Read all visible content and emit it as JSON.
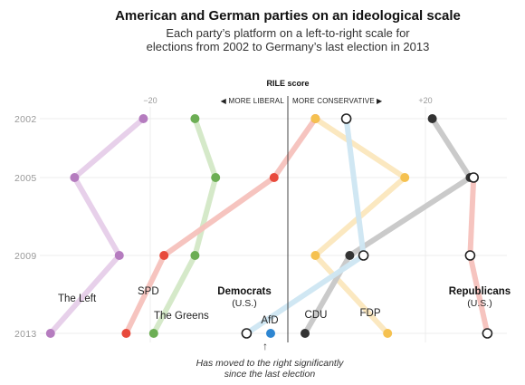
{
  "header": {
    "title": "American and German parties on an ideological scale",
    "subtitle_line1": "Each party’s platform on a left-to-right scale for",
    "subtitle_line2": "elections from 2002 to Germany’s last election in 2013"
  },
  "axis": {
    "title": "RILE score",
    "left_label": "MORE LIBERAL",
    "right_label": "MORE CONSERVATIVE",
    "left_arrow": "◀",
    "right_arrow": "▶"
  },
  "annotation": {
    "arrow": "↑",
    "line1": "Has moved to the right significantly",
    "line2": "since the last election"
  },
  "chart_data": {
    "type": "line",
    "title": "American and German parties on an ideological scale",
    "xlabel": "RILE score",
    "x_ticks": [
      -20,
      20
    ],
    "x_tick_labels": [
      "−20",
      "+20"
    ],
    "xlim": [
      -40,
      35
    ],
    "y_categories": [
      "2002",
      "2005",
      "2009",
      "2013"
    ],
    "grid": true,
    "series": [
      {
        "name": "The Left",
        "color": "#b57cbf",
        "line_color": "#e6cde9",
        "marker": "filled",
        "points": [
          {
            "year": "2002",
            "x": -21
          },
          {
            "year": "2005",
            "x": -31
          },
          {
            "year": "2009",
            "x": -24.5
          },
          {
            "year": "2013",
            "x": -34.5
          }
        ]
      },
      {
        "name": "The Greens",
        "color": "#6cae54",
        "line_color": "#d3e8c6",
        "marker": "filled",
        "points": [
          {
            "year": "2002",
            "x": -13.5
          },
          {
            "year": "2005",
            "x": -10.5
          },
          {
            "year": "2009",
            "x": -13.5
          },
          {
            "year": "2013",
            "x": -19.5
          }
        ]
      },
      {
        "name": "SPD",
        "color": "#e84a3c",
        "line_color": "#f5c1bc",
        "marker": "filled",
        "points": [
          {
            "year": "2002",
            "x": 4
          },
          {
            "year": "2005",
            "x": -2
          },
          {
            "year": "2009",
            "x": -18
          },
          {
            "year": "2013",
            "x": -23.5
          }
        ]
      },
      {
        "name": "FDP",
        "color": "#f5c150",
        "line_color": "#fbe7bd",
        "marker": "filled",
        "points": [
          {
            "year": "2002",
            "x": 4
          },
          {
            "year": "2005",
            "x": 17
          },
          {
            "year": "2009",
            "x": 4
          },
          {
            "year": "2013",
            "x": 14.5
          }
        ]
      },
      {
        "name": "CDU",
        "color": "#333333",
        "line_color": "#c7c7c7",
        "marker": "filled",
        "points": [
          {
            "year": "2002",
            "x": 21
          },
          {
            "year": "2005",
            "x": 26.5
          },
          {
            "year": "2009",
            "x": 9
          },
          {
            "year": "2013",
            "x": 2.5
          }
        ]
      },
      {
        "name": "AfD",
        "color": "#2e86d1",
        "line_color": "#2e86d1",
        "marker": "filled",
        "points": [
          {
            "year": "2013",
            "x": -2.5
          }
        ]
      },
      {
        "name": "Democrats",
        "name_sub": "(U.S.)",
        "color": "#222222",
        "line_color": "#cde6f2",
        "marker": "open",
        "points": [
          {
            "year": "2002",
            "x": 8.5
          },
          {
            "year": "2009",
            "x": 11
          },
          {
            "year": "2013",
            "x": -6
          }
        ]
      },
      {
        "name": "Republicans",
        "name_sub": "(U.S.)",
        "color": "#222222",
        "line_color": "#f5c1bc",
        "marker": "open",
        "points": [
          {
            "year": "2005",
            "x": 27
          },
          {
            "year": "2009",
            "x": 26.5
          },
          {
            "year": "2013",
            "x": 29
          }
        ]
      }
    ]
  }
}
